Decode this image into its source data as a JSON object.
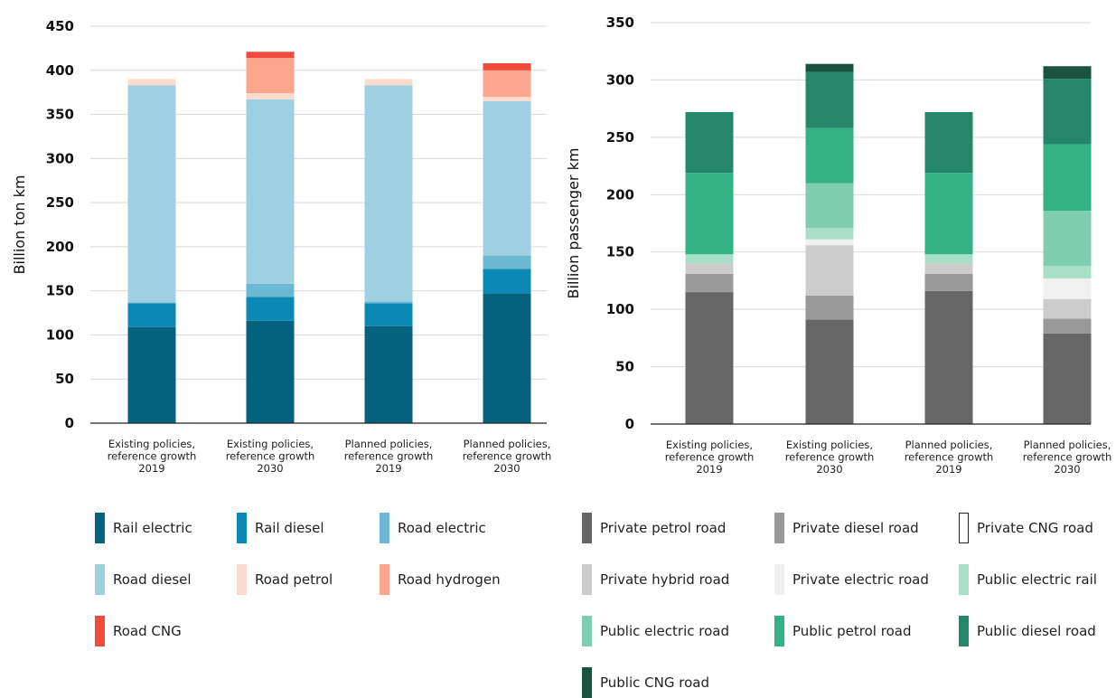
{
  "chart_data": [
    {
      "type": "bar",
      "stacked": true,
      "title": "",
      "xlabel": "",
      "ylabel": "Billion ton km",
      "ylim": [
        0,
        450
      ],
      "yticks": [
        "0",
        "50",
        "100",
        "150",
        "200",
        "250",
        "300",
        "350",
        "400",
        "450"
      ],
      "grid": true,
      "legend_position": "bottom",
      "categories": [
        [
          "Existing policies,",
          "reference growth",
          "2019"
        ],
        [
          "Existing policies,",
          "reference growth",
          "2030"
        ],
        [
          "Planned policies,",
          "reference growth",
          "2019"
        ],
        [
          "Planned policies,",
          "reference growth",
          "2030"
        ]
      ],
      "series": [
        {
          "name": "Rail electric",
          "color": "#05627e",
          "values": [
            109,
            116,
            110,
            147
          ]
        },
        {
          "name": "Rail diesel",
          "color": "#0b88b4",
          "values": [
            27,
            27,
            26,
            28
          ]
        },
        {
          "name": "Road electric",
          "color": "#6bb8d2",
          "values": [
            1,
            15,
            2,
            15
          ]
        },
        {
          "name": "Road diesel",
          "color": "#9dd0e0",
          "values": [
            246,
            209,
            245,
            175
          ]
        },
        {
          "name": "Road petrol",
          "color": "#fbdccc",
          "values": [
            7,
            7,
            7,
            5
          ]
        },
        {
          "name": "Road hydrogen",
          "color": "#fba68d",
          "values": [
            0,
            40,
            0,
            30
          ]
        },
        {
          "name": "Road CNG",
          "color": "#f04b3c",
          "values": [
            0,
            7,
            0,
            8
          ]
        }
      ]
    },
    {
      "type": "bar",
      "stacked": true,
      "title": "",
      "xlabel": "",
      "ylabel": "Billion passenger km",
      "ylim": [
        0,
        350
      ],
      "yticks": [
        "0",
        "50",
        "100",
        "150",
        "200",
        "250",
        "300",
        "350"
      ],
      "grid": true,
      "legend_position": "bottom",
      "categories": [
        [
          "Existing policies,",
          "reference growth",
          "2019"
        ],
        [
          "Existing policies,",
          "reference growth",
          "2030"
        ],
        [
          "Planned policies,",
          "reference growth",
          "2019"
        ],
        [
          "Planned policies,",
          "reference growth",
          "2030"
        ]
      ],
      "series": [
        {
          "name": "Private petrol road",
          "color": "#666666",
          "values": [
            115,
            91,
            116,
            79
          ]
        },
        {
          "name": "Private diesel road",
          "color": "#999999",
          "values": [
            16,
            21,
            15,
            13
          ]
        },
        {
          "name": "Private CNG road",
          "color": "#ffffff",
          "values": [
            0,
            0,
            0,
            0
          ]
        },
        {
          "name": "Private hybrid road",
          "color": "#cccccc",
          "values": [
            9,
            44,
            9,
            17
          ]
        },
        {
          "name": "Private electric road",
          "color": "#f0f0f0",
          "values": [
            0,
            5,
            0,
            18
          ]
        },
        {
          "name": "Public electric rail",
          "color": "#a8dfc8",
          "values": [
            8,
            10,
            8,
            11
          ]
        },
        {
          "name": "Public electric road",
          "color": "#7fceb2",
          "values": [
            0,
            39,
            0,
            48
          ]
        },
        {
          "name": "Public petrol road",
          "color": "#33b286",
          "values": [
            71,
            48,
            71,
            58
          ]
        },
        {
          "name": "Public diesel road",
          "color": "#25876a",
          "values": [
            53,
            49,
            53,
            57
          ]
        },
        {
          "name": "Public CNG road",
          "color": "#1a5440",
          "values": [
            0,
            7,
            0,
            11
          ]
        }
      ]
    }
  ]
}
